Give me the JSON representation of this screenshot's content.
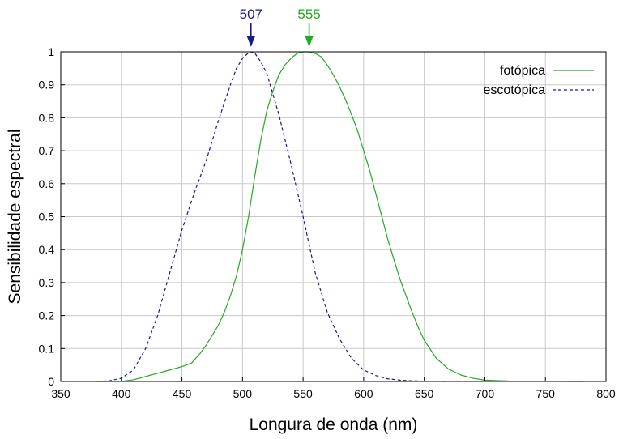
{
  "chart_data": {
    "type": "line",
    "title": "",
    "xlabel": "Longura de onda (nm)",
    "ylabel": "Sensibilidade espectral",
    "xlim": [
      350,
      800
    ],
    "ylim": [
      0,
      1
    ],
    "xticks": [
      350,
      400,
      450,
      500,
      550,
      600,
      650,
      700,
      750,
      800
    ],
    "yticks": [
      0,
      0.1,
      0.2,
      0.3,
      0.4,
      0.5,
      0.6,
      0.7,
      0.8,
      0.9,
      1
    ],
    "grid": true,
    "legend_position": "top-right",
    "series": [
      {
        "name": "fotópica",
        "style": "solid",
        "color": "#22aa22",
        "x": [
          380,
          390,
          400,
          410,
          420,
          430,
          440,
          450,
          458,
          465,
          470,
          475,
          480,
          485,
          490,
          495,
          500,
          505,
          510,
          515,
          520,
          525,
          530,
          535,
          540,
          545,
          550,
          555,
          560,
          565,
          570,
          575,
          580,
          585,
          590,
          595,
          600,
          605,
          610,
          615,
          620,
          625,
          630,
          635,
          640,
          645,
          650,
          660,
          670,
          680,
          690,
          700,
          710,
          720,
          740,
          760,
          780
        ],
        "y": [
          0.0,
          0.0001,
          0.0005,
          0.005,
          0.015,
          0.025,
          0.035,
          0.045,
          0.056,
          0.085,
          0.11,
          0.14,
          0.17,
          0.21,
          0.26,
          0.32,
          0.4,
          0.5,
          0.62,
          0.73,
          0.82,
          0.88,
          0.93,
          0.96,
          0.98,
          0.995,
          1.0,
          1.0,
          0.995,
          0.985,
          0.96,
          0.93,
          0.895,
          0.855,
          0.81,
          0.76,
          0.7,
          0.64,
          0.57,
          0.5,
          0.43,
          0.37,
          0.31,
          0.26,
          0.21,
          0.165,
          0.125,
          0.07,
          0.038,
          0.02,
          0.01,
          0.004,
          0.0025,
          0.0012,
          0.0003,
          0.0001,
          0.0
        ]
      },
      {
        "name": "escotópica",
        "style": "dashed",
        "color": "#1a1a8c",
        "x": [
          380,
          390,
          400,
          410,
          420,
          430,
          440,
          450,
          460,
          470,
          480,
          490,
          495,
          500,
          505,
          507,
          510,
          515,
          520,
          530,
          540,
          550,
          560,
          570,
          580,
          590,
          600,
          610,
          620,
          630,
          640,
          650,
          660,
          670
        ],
        "y": [
          0.0,
          0.002,
          0.01,
          0.035,
          0.1,
          0.2,
          0.33,
          0.46,
          0.57,
          0.67,
          0.79,
          0.9,
          0.95,
          0.98,
          0.997,
          1.0,
          0.997,
          0.97,
          0.935,
          0.81,
          0.66,
          0.5,
          0.33,
          0.21,
          0.13,
          0.07,
          0.035,
          0.018,
          0.008,
          0.004,
          0.002,
          0.0009,
          0.0004,
          0.0
        ]
      }
    ],
    "annotations": [
      {
        "text": "507",
        "x": 507,
        "color": "#1a1a8c"
      },
      {
        "text": "555",
        "x": 555,
        "color": "#22aa22"
      }
    ]
  }
}
